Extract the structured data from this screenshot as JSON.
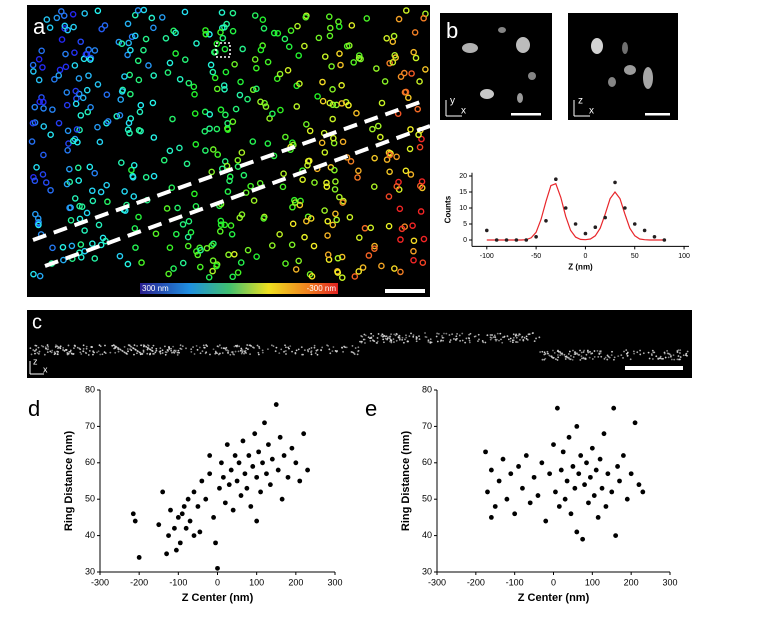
{
  "panels": {
    "a": {
      "label": "a",
      "colorbar_left_label": "300 nm",
      "colorbar_right_label": "-300 nm"
    },
    "b": {
      "label": "b",
      "axes_1": [
        "y",
        "x"
      ],
      "axes_2": [
        "z",
        "x"
      ]
    },
    "c": {
      "label": "c",
      "axes": [
        "z",
        "x"
      ]
    }
  },
  "chart_data": [
    {
      "type": "scatter",
      "xlabel": "Z (nm)",
      "ylabel": "Counts",
      "color": "#231f20",
      "x": [
        -100,
        -90,
        -80,
        -70,
        -60,
        -50,
        -40,
        -30,
        -20,
        -10,
        0,
        10,
        20,
        30,
        40,
        50,
        60,
        70,
        80
      ],
      "values": [
        3,
        0,
        0,
        0,
        0,
        1,
        6,
        19,
        10,
        5,
        2,
        4,
        7,
        18,
        10,
        5,
        3,
        1,
        0
      ],
      "fit": {
        "color": "#e8262b",
        "x": [
          -100,
          -95,
          -90,
          -85,
          -80,
          -75,
          -70,
          -65,
          -60,
          -55,
          -50,
          -45,
          -40,
          -35,
          -30,
          -25,
          -20,
          -15,
          -10,
          -5,
          0,
          5,
          10,
          15,
          20,
          25,
          30,
          35,
          40,
          45,
          50,
          55,
          60,
          65,
          70,
          75,
          80
        ],
        "values": [
          0,
          0,
          0,
          0,
          0,
          0,
          0,
          0,
          0.1,
          0.7,
          2.4,
          6.4,
          12.1,
          17,
          17.6,
          13.3,
          7.4,
          3,
          0.9,
          0.2,
          0.1,
          0.3,
          1.3,
          3.7,
          8.1,
          12.9,
          15,
          12.9,
          8.1,
          3.7,
          1.3,
          0.3,
          0.1,
          0,
          0,
          0,
          0
        ]
      },
      "xlim": [
        -115,
        105
      ],
      "ylim": [
        -2,
        21
      ],
      "xticks": [
        -100,
        -50,
        0,
        50,
        100
      ],
      "yticks": [
        0,
        5,
        10,
        15,
        20
      ]
    },
    {
      "type": "scatter",
      "panel_label": "d",
      "xlabel": "Z Center (nm)",
      "ylabel": "Ring Distance (nm)",
      "color": "#000000",
      "x": [
        -215,
        -210,
        -200,
        -150,
        -140,
        -130,
        -125,
        -120,
        -110,
        -105,
        -100,
        -95,
        -90,
        -85,
        -80,
        -75,
        -70,
        -60,
        -50,
        -45,
        -40,
        -30,
        -20,
        -10,
        -5,
        0,
        5,
        10,
        15,
        20,
        25,
        30,
        35,
        40,
        45,
        50,
        55,
        60,
        65,
        70,
        75,
        80,
        85,
        90,
        95,
        100,
        105,
        110,
        115,
        120,
        125,
        130,
        135,
        140,
        150,
        155,
        160,
        165,
        170,
        180,
        190,
        200,
        210,
        220,
        230,
        -60,
        -20,
        100
      ],
      "values": [
        46,
        44,
        34,
        43,
        52,
        35,
        40,
        47,
        42,
        36,
        45,
        38,
        46,
        48,
        42,
        50,
        44,
        52,
        48,
        41,
        55,
        50,
        57,
        45,
        38,
        31,
        53,
        60,
        56,
        49,
        65,
        54,
        58,
        47,
        62,
        55,
        60,
        51,
        66,
        57,
        53,
        62,
        48,
        59,
        68,
        56,
        63,
        52,
        60,
        71,
        57,
        65,
        54,
        61,
        76,
        58,
        67,
        50,
        62,
        56,
        64,
        60,
        55,
        68,
        58,
        40,
        62,
        44
      ],
      "xlim": [
        -300,
        300
      ],
      "ylim": [
        30,
        80
      ],
      "xticks": [
        -300,
        -200,
        -100,
        0,
        100,
        200,
        300
      ],
      "yticks": [
        30,
        40,
        50,
        60,
        70,
        80
      ]
    },
    {
      "type": "scatter",
      "panel_label": "e",
      "xlabel": "Z Center (nm)",
      "ylabel": "Ring Distance (nm)",
      "color": "#000000",
      "x": [
        -175,
        -170,
        -160,
        -150,
        -140,
        -130,
        -120,
        -110,
        -100,
        -90,
        -80,
        -70,
        -60,
        -50,
        -40,
        -30,
        -20,
        -10,
        0,
        5,
        10,
        15,
        20,
        25,
        30,
        35,
        40,
        45,
        50,
        55,
        60,
        65,
        70,
        75,
        80,
        85,
        90,
        95,
        100,
        105,
        110,
        115,
        120,
        125,
        130,
        135,
        140,
        150,
        155,
        160,
        165,
        170,
        180,
        190,
        200,
        210,
        220,
        230,
        -160,
        60
      ],
      "values": [
        63,
        52,
        58,
        48,
        55,
        61,
        50,
        57,
        46,
        59,
        53,
        62,
        49,
        56,
        51,
        60,
        44,
        57,
        65,
        52,
        75,
        48,
        58,
        63,
        50,
        55,
        67,
        46,
        59,
        53,
        41,
        57,
        62,
        39,
        54,
        60,
        49,
        56,
        64,
        51,
        58,
        45,
        61,
        53,
        68,
        48,
        57,
        52,
        75,
        40,
        59,
        55,
        62,
        50,
        57,
        71,
        54,
        52,
        45,
        70
      ],
      "xlim": [
        -300,
        300
      ],
      "ylim": [
        30,
        80
      ],
      "xticks": [
        -300,
        -200,
        -100,
        0,
        100,
        200,
        300
      ],
      "yticks": [
        30,
        40,
        50,
        60,
        70,
        80
      ]
    }
  ]
}
